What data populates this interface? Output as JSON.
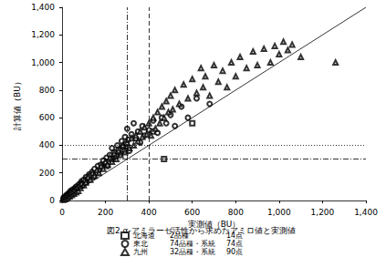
{
  "chart_data": {
    "type": "scatter",
    "title": "図2 α-アミラーゼ活性から求めたアミロ値と実測値",
    "x_label": "実測値（BU）",
    "y_label": "計算値（BU）",
    "xlim": [
      0,
      1400
    ],
    "ylim": [
      0,
      1400
    ],
    "xticks": [
      0,
      200,
      400,
      600,
      800,
      1000,
      1200,
      1400
    ],
    "yticks": [
      0,
      200,
      400,
      600,
      800,
      1000,
      1200,
      1400
    ],
    "grid": false,
    "legend": "bottom",
    "series": [
      {
        "name": "北海道",
        "detail": "2品種",
        "count": "14点",
        "marker": "square",
        "color": "#000000",
        "values": [
          [
            10,
            15
          ],
          [
            25,
            30
          ],
          [
            40,
            45
          ],
          [
            55,
            70
          ],
          [
            70,
            90
          ],
          [
            90,
            110
          ],
          [
            110,
            140
          ],
          [
            140,
            190
          ],
          [
            180,
            250
          ],
          [
            230,
            300
          ],
          [
            290,
            360
          ],
          [
            420,
            500
          ],
          [
            470,
            300
          ],
          [
            600,
            560
          ]
        ]
      },
      {
        "name": "東北",
        "detail": "74品種・系統",
        "count": "74点",
        "marker": "circle",
        "color": "#000000",
        "values": [
          [
            5,
            10
          ],
          [
            8,
            20
          ],
          [
            12,
            15
          ],
          [
            15,
            30
          ],
          [
            18,
            25
          ],
          [
            20,
            40
          ],
          [
            25,
            35
          ],
          [
            28,
            50
          ],
          [
            30,
            45
          ],
          [
            35,
            60
          ],
          [
            38,
            55
          ],
          [
            40,
            70
          ],
          [
            45,
            65
          ],
          [
            50,
            80
          ],
          [
            55,
            75
          ],
          [
            60,
            90
          ],
          [
            65,
            100
          ],
          [
            70,
            85
          ],
          [
            75,
            110
          ],
          [
            80,
            120
          ],
          [
            85,
            105
          ],
          [
            90,
            140
          ],
          [
            95,
            130
          ],
          [
            100,
            150
          ],
          [
            105,
            125
          ],
          [
            110,
            170
          ],
          [
            120,
            160
          ],
          [
            125,
            190
          ],
          [
            130,
            180
          ],
          [
            140,
            210
          ],
          [
            145,
            170
          ],
          [
            150,
            230
          ],
          [
            160,
            200
          ],
          [
            165,
            250
          ],
          [
            170,
            220
          ],
          [
            180,
            260
          ],
          [
            185,
            240
          ],
          [
            190,
            290
          ],
          [
            200,
            270
          ],
          [
            205,
            310
          ],
          [
            210,
            250
          ],
          [
            220,
            330
          ],
          [
            225,
            300
          ],
          [
            230,
            380
          ],
          [
            240,
            350
          ],
          [
            250,
            320
          ],
          [
            255,
            400
          ],
          [
            260,
            370
          ],
          [
            270,
            340
          ],
          [
            275,
            430
          ],
          [
            280,
            390
          ],
          [
            290,
            460
          ],
          [
            295,
            410
          ],
          [
            300,
            520
          ],
          [
            305,
            440
          ],
          [
            310,
            360
          ],
          [
            320,
            480
          ],
          [
            330,
            560
          ],
          [
            340,
            450
          ],
          [
            350,
            500
          ],
          [
            360,
            420
          ],
          [
            370,
            540
          ],
          [
            380,
            470
          ],
          [
            400,
            510
          ],
          [
            420,
            580
          ],
          [
            440,
            490
          ],
          [
            460,
            600
          ],
          [
            480,
            560
          ],
          [
            500,
            620
          ],
          [
            520,
            540
          ],
          [
            550,
            680
          ],
          [
            580,
            600
          ],
          [
            620,
            740
          ],
          [
            680,
            700
          ]
        ]
      },
      {
        "name": "九州",
        "detail": "32品種・系統",
        "count": "90点",
        "marker": "triangle",
        "color": "#000000",
        "values": [
          [
            5,
            5
          ],
          [
            10,
            20
          ],
          [
            15,
            10
          ],
          [
            20,
            30
          ],
          [
            25,
            20
          ],
          [
            30,
            40
          ],
          [
            35,
            30
          ],
          [
            40,
            55
          ],
          [
            45,
            40
          ],
          [
            50,
            65
          ],
          [
            55,
            50
          ],
          [
            60,
            80
          ],
          [
            65,
            60
          ],
          [
            70,
            95
          ],
          [
            75,
            70
          ],
          [
            80,
            110
          ],
          [
            85,
            90
          ],
          [
            90,
            125
          ],
          [
            100,
            110
          ],
          [
            105,
            150
          ],
          [
            110,
            130
          ],
          [
            120,
            170
          ],
          [
            130,
            150
          ],
          [
            140,
            200
          ],
          [
            150,
            180
          ],
          [
            160,
            220
          ],
          [
            170,
            200
          ],
          [
            180,
            250
          ],
          [
            190,
            230
          ],
          [
            200,
            280
          ],
          [
            210,
            260
          ],
          [
            220,
            310
          ],
          [
            230,
            280
          ],
          [
            240,
            340
          ],
          [
            250,
            300
          ],
          [
            260,
            360
          ],
          [
            270,
            330
          ],
          [
            280,
            400
          ],
          [
            290,
            350
          ],
          [
            300,
            420
          ],
          [
            310,
            380
          ],
          [
            320,
            450
          ],
          [
            330,
            400
          ],
          [
            340,
            470
          ],
          [
            350,
            430
          ],
          [
            360,
            500
          ],
          [
            370,
            460
          ],
          [
            380,
            530
          ],
          [
            390,
            480
          ],
          [
            400,
            560
          ],
          [
            410,
            470
          ],
          [
            420,
            600
          ],
          [
            430,
            520
          ],
          [
            440,
            640
          ],
          [
            450,
            560
          ],
          [
            460,
            680
          ],
          [
            470,
            600
          ],
          [
            480,
            720
          ],
          [
            490,
            640
          ],
          [
            500,
            760
          ],
          [
            510,
            660
          ],
          [
            520,
            800
          ],
          [
            540,
            700
          ],
          [
            560,
            840
          ],
          [
            580,
            740
          ],
          [
            600,
            880
          ],
          [
            620,
            780
          ],
          [
            640,
            960
          ],
          [
            650,
            820
          ],
          [
            660,
            900
          ],
          [
            680,
            760
          ],
          [
            700,
            980
          ],
          [
            720,
            860
          ],
          [
            740,
            940
          ],
          [
            760,
            820
          ],
          [
            780,
            1000
          ],
          [
            800,
            900
          ],
          [
            820,
            1040
          ],
          [
            850,
            960
          ],
          [
            880,
            1080
          ],
          [
            900,
            980
          ],
          [
            930,
            1100
          ],
          [
            960,
            1000
          ],
          [
            980,
            1120
          ],
          [
            1000,
            1060
          ],
          [
            1020,
            1150
          ],
          [
            1040,
            1090
          ],
          [
            1060,
            1130
          ],
          [
            1100,
            1040
          ],
          [
            1260,
            1000
          ]
        ]
      }
    ],
    "diagonal": {
      "type": "line",
      "line_style": "solid",
      "color": "#000000",
      "x": [
        0,
        1400
      ],
      "y": [
        0,
        1400
      ]
    },
    "vlines": [
      {
        "value": 300,
        "line_style": "dashdot"
      },
      {
        "value": 400,
        "line_style": "dashed"
      }
    ],
    "hlines": [
      {
        "value": 300,
        "line_style": "dashdot"
      },
      {
        "value": 400,
        "line_style": "dotted"
      }
    ]
  }
}
